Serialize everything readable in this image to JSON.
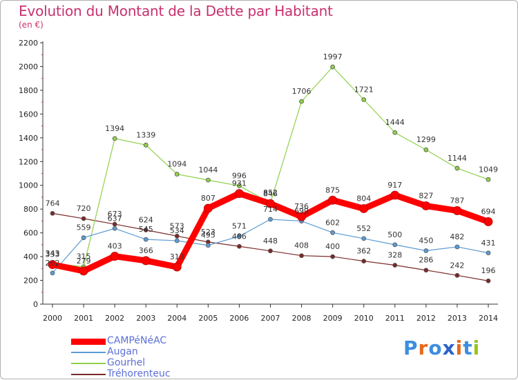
{
  "title": "Evolution du Montant de la Dette par Habitant",
  "subtitle": "(en €)",
  "logo": {
    "text": "Proxiti",
    "letter_colors": [
      "#3c8ee0",
      "#e8681a",
      "#3c8ee0",
      "#2a63c8",
      "#e8681a",
      "#3c8ee0",
      "#9bc31c"
    ]
  },
  "chart_data": {
    "type": "line",
    "title": "Evolution du Montant de la Dette par Habitant",
    "ylabel": "(en €)",
    "xlabel": "",
    "x": [
      "2000",
      "2001",
      "2002",
      "2003",
      "2004",
      "2005",
      "2006",
      "2007",
      "2008",
      "2009",
      "2010",
      "2011",
      "2012",
      "2013",
      "2014"
    ],
    "ylim": [
      0,
      2200
    ],
    "yticks": [
      0,
      200,
      400,
      600,
      800,
      1000,
      1200,
      1400,
      1600,
      1800,
      2000,
      2200
    ],
    "grid": false,
    "legend": "bottom-left",
    "series": [
      {
        "name": "CAMPéNéAC",
        "color": "#ff0000",
        "values": [
          333,
          279,
          403,
          366,
          313,
          807,
          931,
          846,
          736,
          875,
          804,
          917,
          827,
          787,
          694
        ]
      },
      {
        "name": "Augan",
        "color": "#5b9bd5",
        "values": [
          262,
          559,
          637,
          545,
          534,
          495,
          571,
          714,
          699,
          602,
          552,
          500,
          450,
          482,
          431
        ]
      },
      {
        "name": "Gourhel",
        "color": "#8ed04a",
        "values": [
          343,
          315,
          1394,
          1339,
          1094,
          1044,
          996,
          852,
          1706,
          1997,
          1721,
          1444,
          1299,
          1144,
          1049
        ]
      },
      {
        "name": "Tréhorenteuc",
        "color": "#7b2828",
        "values": [
          764,
          720,
          673,
          624,
          573,
          523,
          486,
          448,
          408,
          400,
          362,
          328,
          286,
          242,
          196
        ]
      }
    ]
  }
}
